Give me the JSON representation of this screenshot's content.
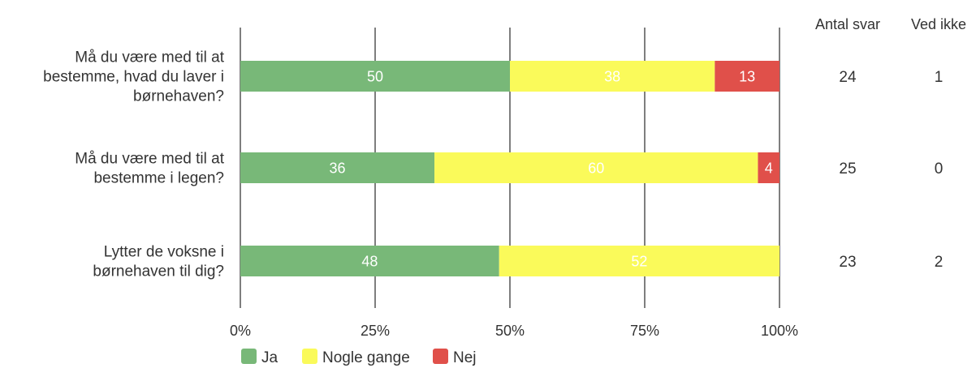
{
  "chart_data": {
    "type": "bar",
    "orientation": "horizontal",
    "stacked": true,
    "categories": [
      [
        "Må du være med til at",
        "bestemme, hvad du laver i",
        "børnehaven?"
      ],
      [
        "Må du være med til at",
        "bestemme i legen?"
      ],
      [
        "Lytter de voksne i",
        "børnehaven til dig?"
      ]
    ],
    "series": [
      {
        "name": "Ja",
        "color": "#78b878",
        "values": [
          50,
          36,
          48
        ]
      },
      {
        "name": "Nogle gange",
        "color": "#fafa5a",
        "values": [
          38,
          60,
          52
        ]
      },
      {
        "name": "Nej",
        "color": "#e0504a",
        "values": [
          13,
          4,
          0
        ]
      }
    ],
    "xlim": [
      0,
      100
    ],
    "xticks": [
      "0%",
      "25%",
      "50%",
      "75%",
      "100%"
    ],
    "grid": true,
    "legend_position": "bottom",
    "extra_columns": [
      {
        "header": "Antal svar",
        "values": [
          "24",
          "25",
          "23"
        ]
      },
      {
        "header": "Ved ikke",
        "values": [
          "1",
          "0",
          "2"
        ]
      }
    ]
  }
}
